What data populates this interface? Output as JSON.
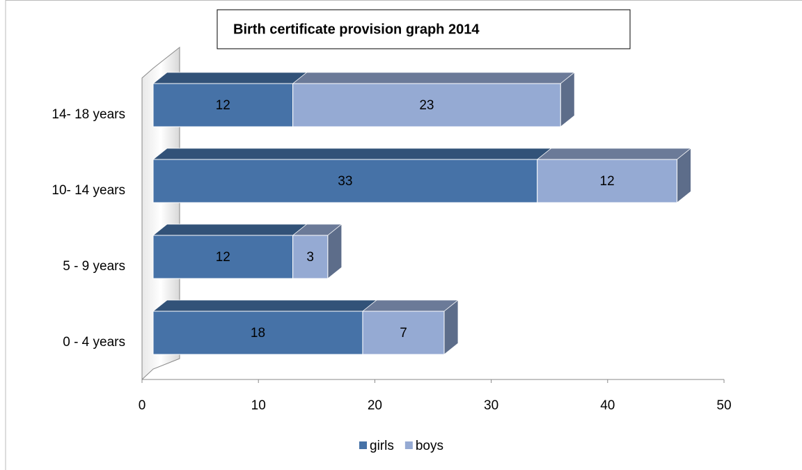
{
  "chart_data": {
    "type": "bar3d_stacked_horizontal",
    "title": "Birth certificate provision graph 2014",
    "categories": [
      "0 - 4 years",
      "5 - 9 years",
      "10- 14 years",
      "14- 18 years"
    ],
    "series": [
      {
        "name": "girls",
        "color": "#4672a7",
        "values": [
          18,
          12,
          33,
          12
        ]
      },
      {
        "name": "boys",
        "color": "#95aad3",
        "values": [
          7,
          3,
          12,
          23
        ]
      }
    ],
    "xlim": [
      0,
      50
    ],
    "xticks": [
      0,
      10,
      20,
      30,
      40,
      50
    ],
    "legend": "bottom"
  }
}
